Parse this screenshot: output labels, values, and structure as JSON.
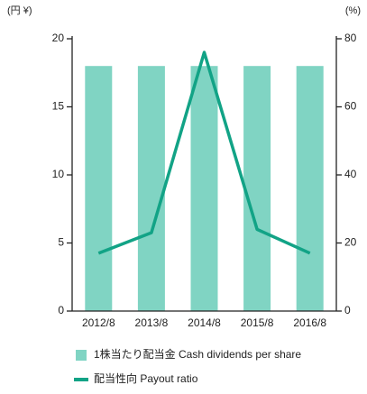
{
  "chart_data": {
    "type": "bar",
    "categories": [
      "2012/8",
      "2013/8",
      "2014/8",
      "2015/8",
      "2016/8"
    ],
    "ylabel": "(円 ¥)",
    "y2label": "(%)",
    "ylim": [
      0,
      20
    ],
    "yticks": [
      0,
      5,
      10,
      15,
      20
    ],
    "y2lim": [
      0,
      80
    ],
    "y2ticks": [
      0,
      20,
      40,
      60,
      80
    ],
    "series": [
      {
        "name": "1株当たり配当金 Cash dividends per share",
        "type": "bar",
        "color": "#80d4c3",
        "values": [
          18,
          18,
          18,
          18,
          18
        ]
      },
      {
        "name": "配当性向 Payout ratio",
        "type": "line",
        "axis": "y2",
        "color": "#12a386",
        "values": [
          17,
          23,
          76,
          24,
          17
        ]
      }
    ]
  }
}
